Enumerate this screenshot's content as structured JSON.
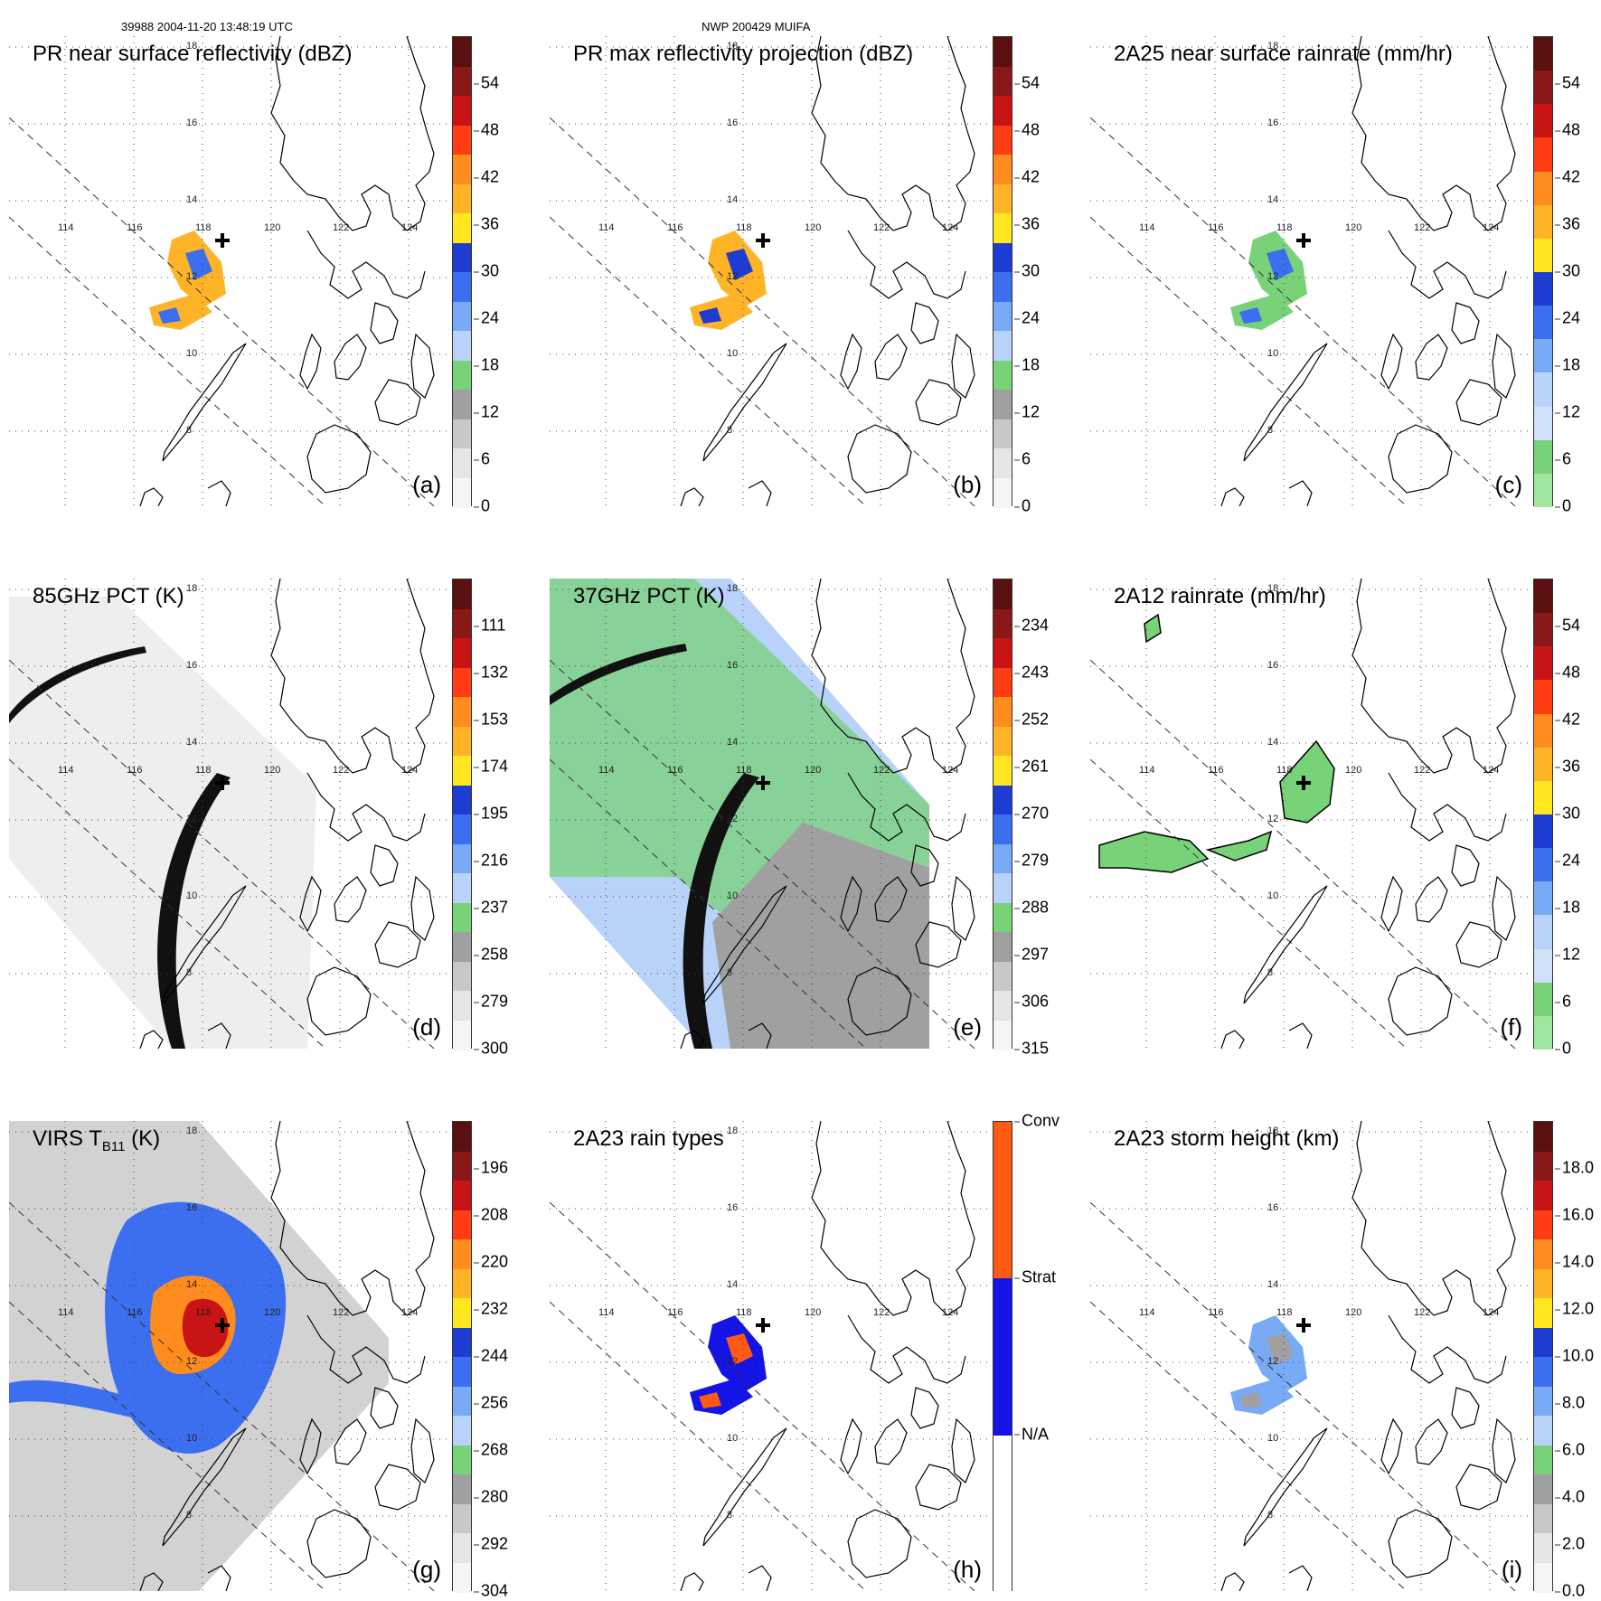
{
  "header": {
    "orbit": "39988 2004-11-20 13:48:19 UTC",
    "storm": "NWP 200429 MUIFA"
  },
  "grid": {
    "lon_labels": [
      "114",
      "116",
      "118",
      "120",
      "122",
      "124"
    ],
    "lat_labels": [
      "18",
      "16",
      "14",
      "12",
      "10",
      "8"
    ]
  },
  "panels": [
    {
      "id": "a",
      "title": "PR near surface reflectivity (dBZ)",
      "label": "(a)",
      "colorbar": {
        "ticks": [
          "54",
          "48",
          "42",
          "36",
          "30",
          "24",
          "18",
          "12",
          "6",
          "0"
        ],
        "colors": [
          "#5a1010",
          "#8b1818",
          "#c81414",
          "#ff3c14",
          "#ff8c1e",
          "#ffb428",
          "#ffe61e",
          "#1e3cd2",
          "#3c6ef0",
          "#78aaf5",
          "#b9d2fa",
          "#78d278",
          "#a0a0a0",
          "#c8c8c8",
          "#e6e6e6",
          "#f5f5f5"
        ]
      }
    },
    {
      "id": "b",
      "title": "PR max reflectivity projection (dBZ)",
      "label": "(b)",
      "colorbar": {
        "ticks": [
          "54",
          "48",
          "42",
          "36",
          "30",
          "24",
          "18",
          "12",
          "6",
          "0"
        ],
        "colors": [
          "#5a1010",
          "#8b1818",
          "#c81414",
          "#ff3c14",
          "#ff8c1e",
          "#ffb428",
          "#ffe61e",
          "#1e3cd2",
          "#3c6ef0",
          "#78aaf5",
          "#b9d2fa",
          "#78d278",
          "#a0a0a0",
          "#c8c8c8",
          "#e6e6e6",
          "#f5f5f5"
        ]
      }
    },
    {
      "id": "c",
      "title": "2A25 near surface rainrate (mm/hr)",
      "label": "(c)",
      "colorbar": {
        "ticks": [
          "54",
          "48",
          "42",
          "36",
          "30",
          "24",
          "18",
          "12",
          "6",
          "0"
        ],
        "colors": [
          "#5a1010",
          "#8b1818",
          "#c81414",
          "#ff3c14",
          "#ff8c1e",
          "#ffb428",
          "#ffe61e",
          "#1e3cd2",
          "#3c6ef0",
          "#78aaf5",
          "#b9d2fa",
          "#d2e1fa",
          "#78d278",
          "#a0e6a0"
        ]
      }
    },
    {
      "id": "d",
      "title": "85GHz PCT (K)",
      "label": "(d)",
      "colorbar": {
        "ticks": [
          "111",
          "132",
          "153",
          "174",
          "195",
          "216",
          "237",
          "258",
          "279",
          "300"
        ],
        "colors": [
          "#5a1010",
          "#8b1818",
          "#c81414",
          "#ff3c14",
          "#ff8c1e",
          "#ffb428",
          "#ffe61e",
          "#1e3cd2",
          "#3c6ef0",
          "#78aaf5",
          "#b9d2fa",
          "#78d278",
          "#a0a0a0",
          "#c8c8c8",
          "#e6e6e6",
          "#f5f5f5"
        ]
      }
    },
    {
      "id": "e",
      "title": "37GHz PCT (K)",
      "label": "(e)",
      "colorbar": {
        "ticks": [
          "234",
          "243",
          "252",
          "261",
          "270",
          "279",
          "288",
          "297",
          "306",
          "315"
        ],
        "colors": [
          "#5a1010",
          "#8b1818",
          "#c81414",
          "#ff3c14",
          "#ff8c1e",
          "#ffb428",
          "#ffe61e",
          "#1e3cd2",
          "#3c6ef0",
          "#78aaf5",
          "#b9d2fa",
          "#78d278",
          "#a0a0a0",
          "#c8c8c8",
          "#e6e6e6",
          "#f5f5f5"
        ]
      }
    },
    {
      "id": "f",
      "title": "2A12 rainrate (mm/hr)",
      "label": "(f)",
      "colorbar": {
        "ticks": [
          "54",
          "48",
          "42",
          "36",
          "30",
          "24",
          "18",
          "12",
          "6",
          "0"
        ],
        "colors": [
          "#5a1010",
          "#8b1818",
          "#c81414",
          "#ff3c14",
          "#ff8c1e",
          "#ffb428",
          "#ffe61e",
          "#1e3cd2",
          "#3c6ef0",
          "#78aaf5",
          "#b9d2fa",
          "#d2e1fa",
          "#78d278",
          "#a0e6a0"
        ]
      }
    },
    {
      "id": "g",
      "title_main": "VIRS T",
      "title_sub": "B11",
      "title_end": " (K)",
      "label": "(g)",
      "colorbar": {
        "ticks": [
          "196",
          "208",
          "220",
          "232",
          "244",
          "256",
          "268",
          "280",
          "292",
          "304"
        ],
        "colors": [
          "#5a1010",
          "#8b1818",
          "#c81414",
          "#ff3c14",
          "#ff8c1e",
          "#ffb428",
          "#ffe61e",
          "#1e3cd2",
          "#3c6ef0",
          "#78aaf5",
          "#b9d2fa",
          "#78d278",
          "#a0a0a0",
          "#c8c8c8",
          "#e6e6e6",
          "#f5f5f5"
        ]
      }
    },
    {
      "id": "h",
      "title": "2A23 rain types",
      "label": "(h)",
      "colorbar": {
        "ticks": [
          "Conv",
          "Strat",
          "N/A"
        ],
        "colors": [
          "#ff5a14",
          "#1414e6",
          "#ffffff"
        ]
      }
    },
    {
      "id": "i",
      "title": "2A23 storm height (km)",
      "label": "(i)",
      "colorbar": {
        "ticks": [
          "18.0",
          "16.0",
          "14.0",
          "12.0",
          "10.0",
          "8.0",
          "6.0",
          "4.0",
          "2.0",
          "0.0"
        ],
        "colors": [
          "#5a1010",
          "#8b1818",
          "#c81414",
          "#ff3c14",
          "#ff8c1e",
          "#ffb428",
          "#ffe61e",
          "#1e3cd2",
          "#3c6ef0",
          "#78aaf5",
          "#b9d2fa",
          "#78d278",
          "#a0a0a0",
          "#c8c8c8",
          "#e6e6e6",
          "#f5f5f5"
        ]
      }
    }
  ]
}
